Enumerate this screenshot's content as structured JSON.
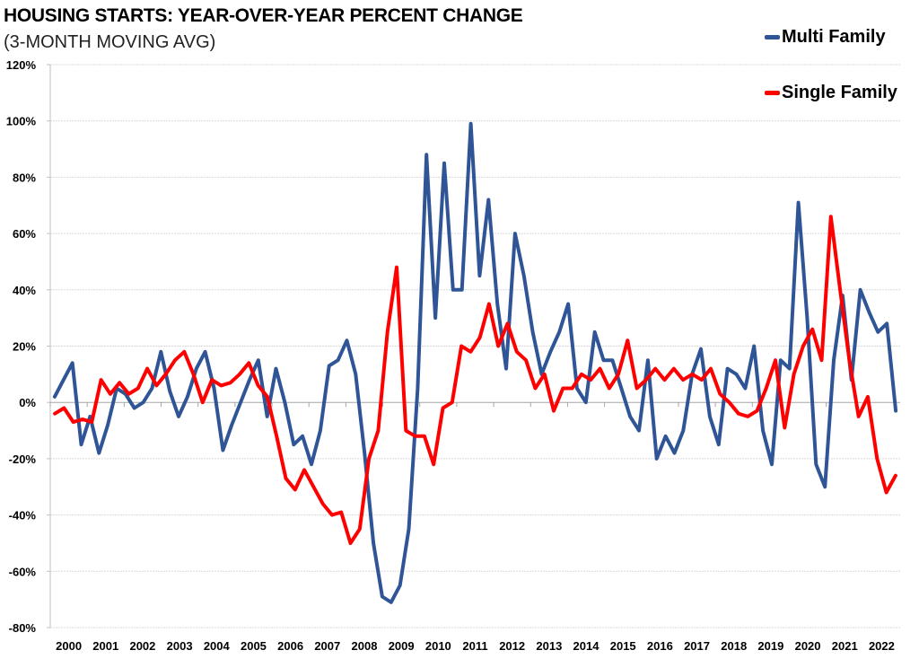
{
  "chart_data": {
    "type": "line",
    "title": "HOUSING STARTS: YEAR-OVER-YEAR PERCENT CHANGE",
    "subtitle": "(3-MONTH MOVING AVG)",
    "xlabel": "",
    "ylabel": "",
    "ylim": [
      -80,
      120
    ],
    "yticks": [
      120,
      100,
      80,
      60,
      40,
      20,
      0,
      -20,
      -40,
      -60,
      -80
    ],
    "ytick_labels": [
      "120%",
      "100%",
      "80%",
      "60%",
      "40%",
      "20%",
      "0%",
      "-20%",
      "-40%",
      "-60%",
      "-80%"
    ],
    "x_categories": [
      "2000",
      "2001",
      "2002",
      "2003",
      "2004",
      "2005",
      "2006",
      "2007",
      "2008",
      "2009",
      "2010",
      "2011",
      "2012",
      "2013",
      "2014",
      "2015",
      "2016",
      "2017",
      "2018",
      "2019",
      "2020",
      "2021",
      "2022"
    ],
    "x_frequency": "quarterly",
    "grid": true,
    "legend_position": "top-right",
    "series": [
      {
        "name": "Multi Family",
        "color": "#2f5597",
        "values": [
          2,
          8,
          14,
          -15,
          -5,
          -18,
          -8,
          5,
          3,
          -2,
          0,
          5,
          18,
          4,
          -5,
          2,
          12,
          18,
          5,
          -17,
          -8,
          0,
          8,
          15,
          -5,
          12,
          0,
          -15,
          -12,
          -22,
          -10,
          13,
          15,
          22,
          10,
          -18,
          -50,
          -69,
          -71,
          -65,
          -45,
          5,
          88,
          30,
          85,
          40,
          40,
          99,
          45,
          72,
          35,
          12,
          60,
          45,
          25,
          10,
          18,
          25,
          35,
          5,
          0,
          25,
          15,
          15,
          5,
          -5,
          -10,
          15,
          -20,
          -12,
          -18,
          -10,
          10,
          19,
          -5,
          -15,
          12,
          10,
          5,
          20,
          -10,
          -22,
          15,
          12,
          71,
          30,
          -22,
          -30,
          15,
          38,
          8,
          40,
          32,
          25,
          28,
          -3
        ]
      },
      {
        "name": "Single Family",
        "color": "#ff0000",
        "values": [
          -4,
          -2,
          -7,
          -6,
          -7,
          8,
          3,
          7,
          3,
          5,
          12,
          6,
          10,
          15,
          18,
          10,
          0,
          8,
          6,
          7,
          10,
          14,
          6,
          2,
          -12,
          -27,
          -31,
          -24,
          -30,
          -36,
          -40,
          -39,
          -50,
          -45,
          -20,
          -10,
          25,
          48,
          -10,
          -12,
          -12,
          -22,
          -2,
          0,
          20,
          18,
          23,
          35,
          20,
          28,
          18,
          15,
          5,
          10,
          -3,
          5,
          5,
          10,
          8,
          12,
          5,
          10,
          22,
          5,
          8,
          12,
          8,
          12,
          8,
          10,
          8,
          12,
          3,
          0,
          -4,
          -5,
          -3,
          5,
          15,
          -9,
          10,
          20,
          26,
          15,
          66,
          40,
          15,
          -5,
          2,
          -20,
          -32,
          -26
        ]
      }
    ]
  }
}
